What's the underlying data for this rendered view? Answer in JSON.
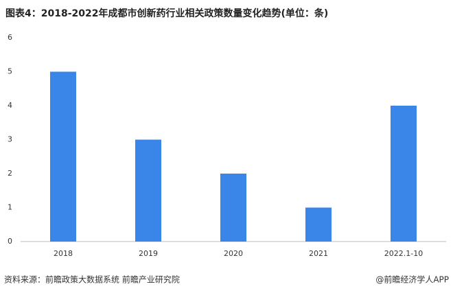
{
  "chart_data": {
    "type": "bar",
    "title": "图表4：2018-2022年成都市创新药行业相关政策数量变化趋势(单位：条)",
    "categories": [
      "2018",
      "2019",
      "2020",
      "2021",
      "2022.1-10"
    ],
    "values": [
      5,
      3,
      2,
      1,
      4
    ],
    "color": "#3a86e8",
    "ylim": [
      0,
      6
    ],
    "yticks": [
      0,
      1,
      2,
      3,
      4,
      5,
      6
    ],
    "grid": false,
    "source": "资料来源：前瞻政策大数据系统 前瞻产业研究院",
    "credit": "@前瞻经济学人APP"
  }
}
